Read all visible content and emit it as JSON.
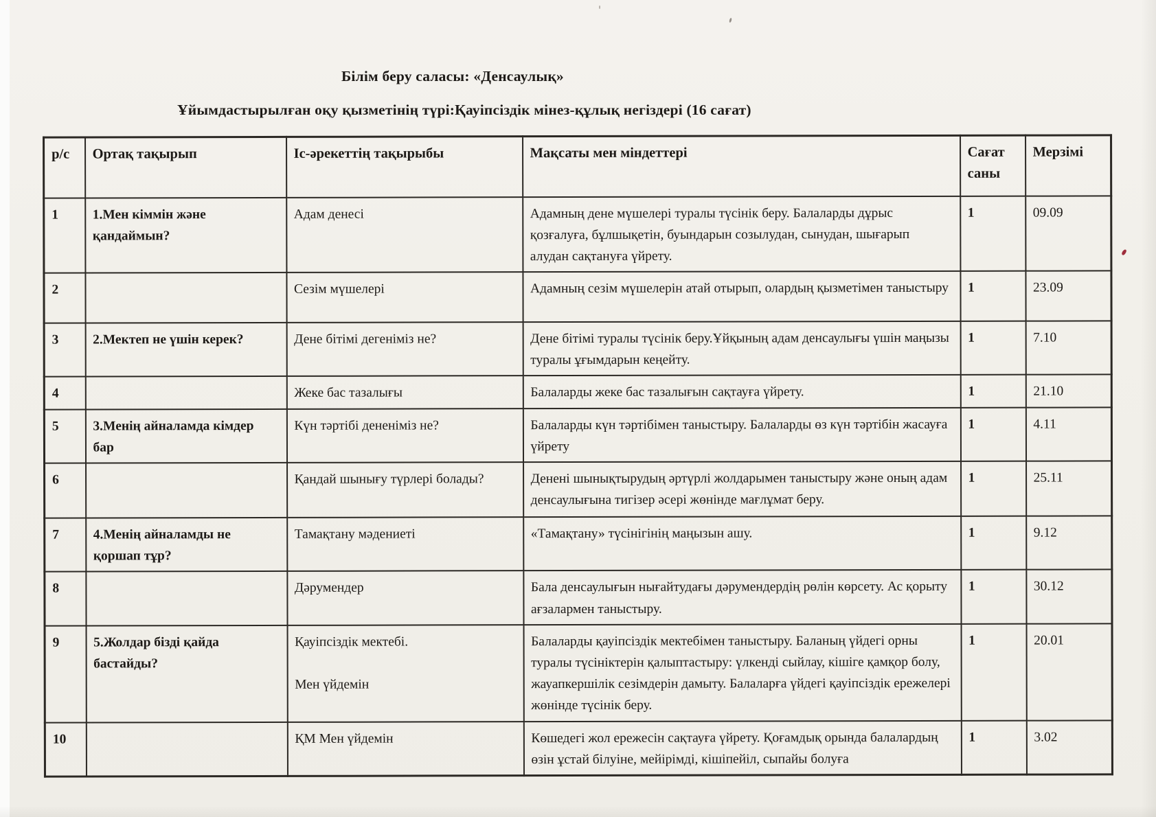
{
  "page": {
    "title": "Білім беру саласы: «Денсаулық»",
    "subtitle": "Ұйымдастырылған оқу қызметінің түрі:Қауіпсіздік мінез-құлық негіздері  (16 сағат)"
  },
  "table": {
    "headers": {
      "num": "р/с",
      "common_topic": "Ортақ тақырып",
      "activity_topic": "Іс-әрекеттің  тақырыбы",
      "goals": "Мақсаты мен міндеттері",
      "hours": "Сағат\nсаны",
      "date": "Мерзімі"
    },
    "rows": [
      {
        "num": "1",
        "common_topic": "1.Мен кіммін және қандаймын?",
        "activity_topic": "Адам денесі",
        "goals": "Адамның дене мүшелері туралы түсінік беру. Балаларды дұрыс қозғалуға, бұлшықетін, буындарын созылудан, сынудан, шығарып алудан сақтануға үйрету.",
        "hours": "1",
        "date": "09.09"
      },
      {
        "num": "2",
        "common_topic": "",
        "activity_topic": "Сезім мүшелері",
        "goals": "Адамның сезім мүшелерін атай отырып, олардың қызметімен таныстыру",
        "hours": "1",
        "date": "23.09"
      },
      {
        "num": "3",
        "common_topic": "2.Мектеп не үшін керек?",
        "activity_topic": "Дене бітімі дегеніміз не?",
        "goals": "Дене бітімі туралы түсінік беру.Ұйқының адам денсаулығы үшін маңызы туралы ұғымдарын кеңейту.",
        "hours": "1",
        "date": "7.10"
      },
      {
        "num": "4",
        "common_topic": "",
        "activity_topic": "Жеке бас тазалығы",
        "goals": "Балаларды жеке бас тазалығын сақтауға үйрету.",
        "hours": "1",
        "date": "21.10"
      },
      {
        "num": "5",
        "common_topic": "3.Менің айналамда кімдер бар",
        "activity_topic": "Күн тәртібі дененіміз не?",
        "goals": "Балаларды күн тәртібімен таныстыру. Балаларды өз күн тәртібін жасауға үйрету",
        "hours": "1",
        "date": "4.11"
      },
      {
        "num": "6",
        "common_topic": "",
        "activity_topic": "Қандай шынығу түрлері болады?",
        "goals": "Денені шынықтырудың әртүрлі  жолдарымен таныстыру және оның адам денсаулығына тигізер әсері жөнінде мағлұмат беру.",
        "hours": "1",
        "date": "25.11"
      },
      {
        "num": "7",
        "common_topic": "4.Менің айналамды не қоршап тұр?",
        "activity_topic": "Тамақтану мәдениеті",
        "goals": "«Тамақтану» түсінігінің маңызын ашу.",
        "hours": "1",
        "date": "9.12"
      },
      {
        "num": "8",
        "common_topic": "",
        "activity_topic": "Дәрумендер",
        "goals": "Бала денсаулығын нығайтудағы дәрумендердің рөлін көрсету. Ас қорыту ағзалармен таныстыру.",
        "hours": "1",
        "date": "30.12"
      },
      {
        "num": "9",
        "common_topic": "5.Жолдар бізді қайда бастайды?",
        "activity_topic": "Қауіпсіздік мектебі.\n\nМен үйдемін",
        "goals": "Балаларды қауіпсіздік мектебімен таныстыру. Баланың үйдегі орны туралы түсініктерін қалыптастыру: үлкенді сыйлау, кішіге қамқор болу, жауапкершілік сезімдерін дамыту. Балаларға үйдегі қауіпсіздік ережелері жөнінде түсінік беру.",
        "hours": "1",
        "date": "20.01"
      },
      {
        "num": "10",
        "common_topic": "",
        "activity_topic": "ҚМ Мен үйдемін",
        "goals": "Көшедегі жол ережесін сақтауға үйрету. Қоғамдық орында балалардың өзін ұстай білуіне, мейірімді, кішіпейіл, сыпайы болуға",
        "hours": "1",
        "date": "3.02"
      }
    ]
  },
  "artifacts": {
    "red_speck_color": "#9e2d3c"
  }
}
